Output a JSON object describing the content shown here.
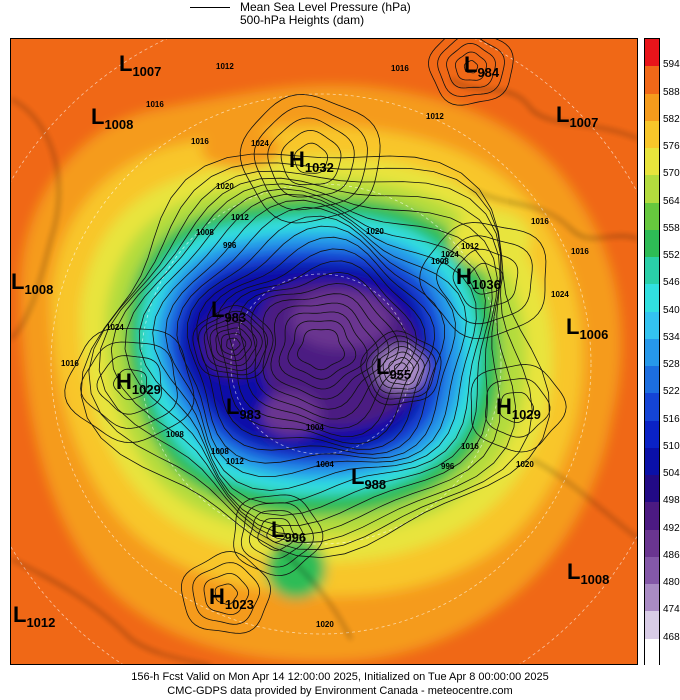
{
  "legend": {
    "line1": "Mean Sea Level Pressure (hPa)",
    "line2": "500-hPa Heights (dam)"
  },
  "map": {
    "pressure_centres": [
      {
        "kind": "L",
        "value": "1007"
      },
      {
        "kind": "L",
        "value": "1008"
      },
      {
        "kind": "H",
        "value": "1032"
      },
      {
        "kind": "L",
        "value": "984"
      },
      {
        "kind": "L",
        "value": "1007"
      },
      {
        "kind": "L",
        "value": "1008"
      },
      {
        "kind": "H",
        "value": "1036"
      },
      {
        "kind": "L",
        "value": "1006"
      },
      {
        "kind": "L",
        "value": "983"
      },
      {
        "kind": "H",
        "value": "1029"
      },
      {
        "kind": "L",
        "value": "955"
      },
      {
        "kind": "H",
        "value": "1029"
      },
      {
        "kind": "L",
        "value": "983"
      },
      {
        "kind": "L",
        "value": "988"
      },
      {
        "kind": "L",
        "value": "996"
      },
      {
        "kind": "H",
        "value": "1023"
      },
      {
        "kind": "L",
        "value": "1008"
      },
      {
        "kind": "L",
        "value": "1012"
      }
    ],
    "isobar_labels": [
      "1012",
      "1016",
      "1016",
      "1012",
      "1016",
      "1024",
      "1020",
      "1012",
      "1008",
      "996",
      "1024",
      "1004",
      "1008",
      "1024",
      "1020",
      "1012",
      "1008",
      "1004",
      "996",
      "1016",
      "1020",
      "1016",
      "1024",
      "1016",
      "1012",
      "1008",
      "1016",
      "1020",
      "1016"
    ],
    "colors": {
      "ocean_orange": "#f07a1e",
      "land_outline": "#000000",
      "low_purple": "#6a2a8c"
    }
  },
  "colorbar": {
    "unit": "dam",
    "levels": [
      {
        "label": "594",
        "color": "#e8141a"
      },
      {
        "label": "588",
        "color": "#f06818"
      },
      {
        "label": "582",
        "color": "#f59b1c"
      },
      {
        "label": "576",
        "color": "#f8c62a"
      },
      {
        "label": "570",
        "color": "#e8e43c"
      },
      {
        "label": "564",
        "color": "#b3dc3e"
      },
      {
        "label": "558",
        "color": "#66c83e"
      },
      {
        "label": "552",
        "color": "#2ebc56"
      },
      {
        "label": "546",
        "color": "#2ad0a8"
      },
      {
        "label": "540",
        "color": "#31e0e0"
      },
      {
        "label": "534",
        "color": "#33c3f0"
      },
      {
        "label": "528",
        "color": "#2698ea"
      },
      {
        "label": "522",
        "color": "#1c6ee0"
      },
      {
        "label": "516",
        "color": "#1444d6"
      },
      {
        "label": "510",
        "color": "#0a22c6"
      },
      {
        "label": "504",
        "color": "#0a10a8"
      },
      {
        "label": "498",
        "color": "#220a86"
      },
      {
        "label": "492",
        "color": "#4c1a82"
      },
      {
        "label": "486",
        "color": "#6a3590"
      },
      {
        "label": "480",
        "color": "#8458a8"
      },
      {
        "label": "474",
        "color": "#a98bc4"
      },
      {
        "label": "468",
        "color": "#d8cce6"
      },
      {
        "label": "",
        "color": "#ffffff"
      }
    ]
  },
  "footer": {
    "line1": "156-h Fcst Valid on Mon Apr 14 12:00:00 2025, Initialized on Tue Apr  8 00:00:00 2025",
    "line2": "CMC-GDPS data provided by Environment Canada - meteocentre.com"
  }
}
